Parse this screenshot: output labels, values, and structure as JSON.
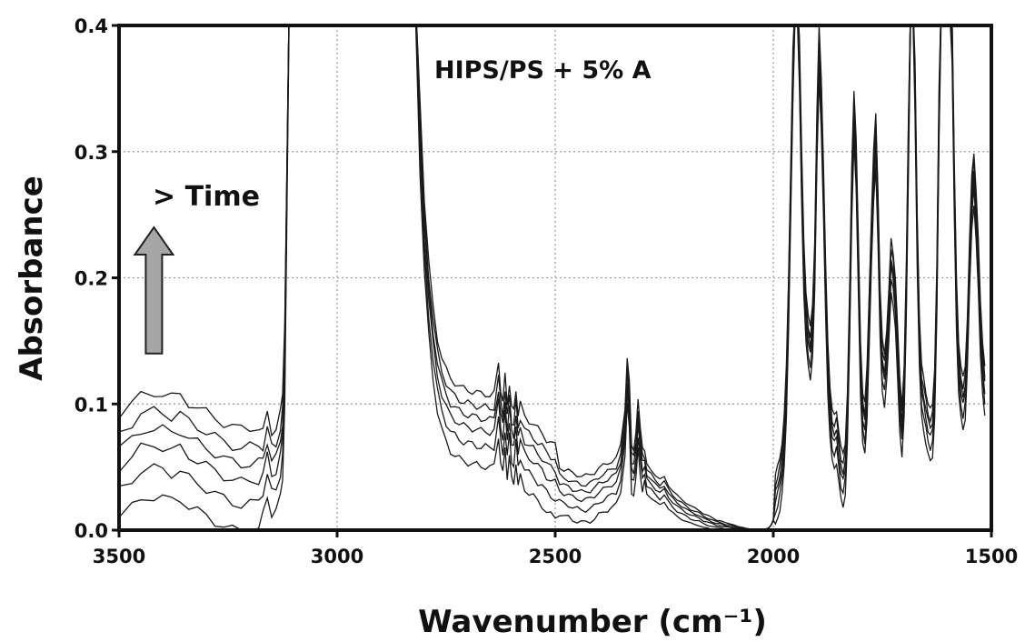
{
  "chart_data": {
    "type": "line",
    "title": "",
    "xlabel": "Wavenumber (cm⁻¹)",
    "ylabel": "Absorbance",
    "xlim": [
      3500,
      1500
    ],
    "ylim": [
      0.0,
      0.4
    ],
    "x_reversed": true,
    "grid": true,
    "grid_style": "dotted",
    "x_ticks": [
      3500,
      3000,
      2500,
      2000,
      1500
    ],
    "y_ticks": [
      0.0,
      0.1,
      0.2,
      0.3,
      0.4
    ],
    "x_tick_labels": [
      "3500",
      "3000",
      "2500",
      "2000",
      "1500"
    ],
    "y_tick_labels": [
      "0.0",
      "0.1",
      "0.2",
      "0.3",
      "0.4"
    ],
    "line_color": "#1a1a1a",
    "arrow_color": "#a6a6a6",
    "annotations": {
      "sample": "HIPS/PS + 5% A",
      "time": "> Time"
    },
    "series_count": 6,
    "x": [
      3500,
      3470,
      3450,
      3420,
      3400,
      3380,
      3360,
      3340,
      3320,
      3300,
      3280,
      3260,
      3240,
      3220,
      3200,
      3180,
      3170,
      3160,
      3150,
      3140,
      3130,
      3125,
      3120,
      3110,
      2820,
      2810,
      2800,
      2790,
      2780,
      2770,
      2760,
      2750,
      2740,
      2730,
      2720,
      2710,
      2700,
      2690,
      2680,
      2670,
      2660,
      2650,
      2640,
      2630,
      2625,
      2620,
      2615,
      2610,
      2605,
      2600,
      2595,
      2590,
      2585,
      2580,
      2570,
      2560,
      2550,
      2540,
      2530,
      2520,
      2510,
      2500,
      2490,
      2480,
      2470,
      2460,
      2450,
      2440,
      2430,
      2420,
      2410,
      2400,
      2390,
      2380,
      2370,
      2360,
      2350,
      2340,
      2335,
      2330,
      2325,
      2320,
      2315,
      2310,
      2305,
      2300,
      2295,
      2290,
      2280,
      2270,
      2260,
      2250,
      2240,
      2230,
      2220,
      2210,
      2200,
      2190,
      2180,
      2170,
      2160,
      2150,
      2140,
      2130,
      2120,
      2110,
      2100,
      2090,
      2080,
      2070,
      2060,
      2050,
      2040,
      2030,
      2020,
      2015,
      2010,
      2005,
      2000,
      1995,
      1990,
      1985,
      1980,
      1975,
      1970,
      1965,
      1960,
      1955,
      1950,
      1945,
      1940,
      1935,
      1930,
      1925,
      1920,
      1915,
      1910,
      1905,
      1900,
      1895,
      1890,
      1885,
      1880,
      1875,
      1870,
      1865,
      1860,
      1855,
      1850,
      1845,
      1840,
      1835,
      1830,
      1825,
      1820,
      1815,
      1810,
      1805,
      1800,
      1795,
      1790,
      1785,
      1780,
      1775,
      1770,
      1765,
      1760,
      1755,
      1750,
      1745,
      1740,
      1735,
      1730,
      1725,
      1720,
      1715,
      1710,
      1705,
      1700,
      1695,
      1690,
      1685,
      1680,
      1675,
      1670,
      1665,
      1660,
      1655,
      1650,
      1645,
      1640,
      1635,
      1630,
      1625,
      1620,
      1615,
      1610,
      1605,
      1600,
      1595,
      1590,
      1585,
      1580,
      1575,
      1570,
      1565,
      1560,
      1555,
      1550,
      1545,
      1540,
      1535,
      1530,
      1525,
      1520,
      1515,
      1510,
      1505,
      1500
    ],
    "base_absorbance": [
      0.032,
      0.04,
      0.047,
      0.049,
      0.048,
      0.045,
      0.047,
      0.041,
      0.037,
      0.033,
      0.029,
      0.025,
      0.022,
      0.02,
      0.021,
      0.022,
      0.03,
      0.045,
      0.03,
      0.032,
      0.045,
      0.06,
      0.12,
      0.42,
      0.42,
      0.3,
      0.22,
      0.17,
      0.135,
      0.11,
      0.095,
      0.085,
      0.078,
      0.075,
      0.072,
      0.07,
      0.069,
      0.068,
      0.067,
      0.066,
      0.066,
      0.065,
      0.066,
      0.09,
      0.07,
      0.06,
      0.08,
      0.058,
      0.075,
      0.055,
      0.052,
      0.07,
      0.05,
      0.058,
      0.048,
      0.045,
      0.042,
      0.038,
      0.035,
      0.03,
      0.027,
      0.025,
      0.023,
      0.021,
      0.02,
      0.018,
      0.017,
      0.016,
      0.016,
      0.017,
      0.019,
      0.022,
      0.024,
      0.026,
      0.028,
      0.03,
      0.04,
      0.07,
      0.11,
      0.09,
      0.04,
      0.038,
      0.05,
      0.075,
      0.055,
      0.04,
      0.045,
      0.035,
      0.032,
      0.028,
      0.025,
      0.028,
      0.022,
      0.018,
      0.015,
      0.013,
      0.011,
      0.009,
      0.008,
      0.007,
      0.005,
      0.004,
      0.003,
      0.002,
      0.002,
      0.001,
      0.001,
      0.001,
      0.0,
      0.0,
      0.0,
      0.0,
      0.0,
      0.0,
      0.0,
      0.001,
      0.002,
      0.004,
      0.008,
      0.014,
      0.02,
      0.028,
      0.04,
      0.06,
      0.1,
      0.17,
      0.26,
      0.35,
      0.42,
      0.42,
      0.36,
      0.27,
      0.2,
      0.16,
      0.14,
      0.13,
      0.15,
      0.2,
      0.3,
      0.37,
      0.33,
      0.26,
      0.18,
      0.12,
      0.085,
      0.065,
      0.06,
      0.065,
      0.05,
      0.035,
      0.03,
      0.04,
      0.08,
      0.16,
      0.26,
      0.32,
      0.28,
      0.2,
      0.12,
      0.08,
      0.07,
      0.1,
      0.16,
      0.22,
      0.27,
      0.3,
      0.24,
      0.16,
      0.12,
      0.11,
      0.13,
      0.16,
      0.2,
      0.19,
      0.17,
      0.13,
      0.09,
      0.07,
      0.1,
      0.18,
      0.3,
      0.42,
      0.42,
      0.34,
      0.22,
      0.14,
      0.1,
      0.09,
      0.08,
      0.07,
      0.065,
      0.07,
      0.1,
      0.18,
      0.32,
      0.42,
      0.42,
      0.42,
      0.42,
      0.42,
      0.38,
      0.26,
      0.17,
      0.12,
      0.1,
      0.09,
      0.1,
      0.14,
      0.2,
      0.25,
      0.27,
      0.24,
      0.2,
      0.15,
      0.12,
      0.1
    ],
    "series_offsets": [
      -0.022,
      0.0,
      0.018,
      0.032,
      0.045,
      0.06
    ],
    "arrow": {
      "x": 3420,
      "y_from": 0.14,
      "y_to": 0.24
    }
  }
}
